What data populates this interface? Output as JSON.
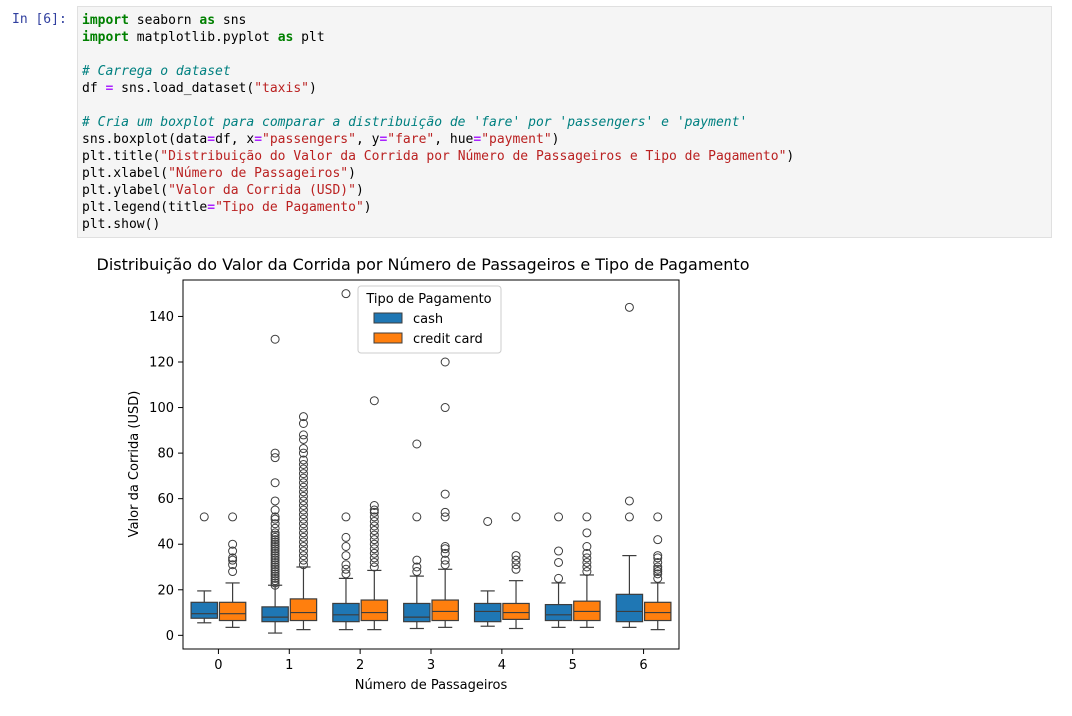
{
  "cell": {
    "prompt": "In [6]:",
    "code_lines": [
      [
        {
          "t": "import",
          "c": "kw"
        },
        {
          "t": " seaborn "
        },
        {
          "t": "as",
          "c": "kw"
        },
        {
          "t": " sns"
        }
      ],
      [
        {
          "t": "import",
          "c": "kw"
        },
        {
          "t": " matplotlib.pyplot "
        },
        {
          "t": "as",
          "c": "kw"
        },
        {
          "t": " plt"
        }
      ],
      [],
      [
        {
          "t": "# Carrega o dataset",
          "c": "cm"
        }
      ],
      [
        {
          "t": "df "
        },
        {
          "t": "=",
          "c": "op"
        },
        {
          "t": " sns.load_dataset("
        },
        {
          "t": "\"taxis\"",
          "c": "st"
        },
        {
          "t": ")"
        }
      ],
      [],
      [
        {
          "t": "# Cria um boxplot para comparar a distribuição de 'fare' por 'passengers' e 'payment'",
          "c": "cm"
        }
      ],
      [
        {
          "t": "sns.boxplot(data"
        },
        {
          "t": "=",
          "c": "op"
        },
        {
          "t": "df, x"
        },
        {
          "t": "=",
          "c": "op"
        },
        {
          "t": "\"passengers\"",
          "c": "st"
        },
        {
          "t": ", y"
        },
        {
          "t": "=",
          "c": "op"
        },
        {
          "t": "\"fare\"",
          "c": "st"
        },
        {
          "t": ", hue"
        },
        {
          "t": "=",
          "c": "op"
        },
        {
          "t": "\"payment\"",
          "c": "st"
        },
        {
          "t": ")"
        }
      ],
      [
        {
          "t": "plt.title("
        },
        {
          "t": "\"Distribuição do Valor da Corrida por Número de Passageiros e Tipo de Pagamento\"",
          "c": "st"
        },
        {
          "t": ")"
        }
      ],
      [
        {
          "t": "plt.xlabel("
        },
        {
          "t": "\"Número de Passageiros\"",
          "c": "st"
        },
        {
          "t": ")"
        }
      ],
      [
        {
          "t": "plt.ylabel("
        },
        {
          "t": "\"Valor da Corrida (USD)\"",
          "c": "st"
        },
        {
          "t": ")"
        }
      ],
      [
        {
          "t": "plt.legend(title"
        },
        {
          "t": "=",
          "c": "op"
        },
        {
          "t": "\"Tipo de Pagamento\"",
          "c": "st"
        },
        {
          "t": ")"
        }
      ],
      [
        {
          "t": "plt.show()"
        }
      ]
    ]
  },
  "chart_data": {
    "type": "box",
    "title": "Distribuição do Valor da Corrida por Número de Passageiros e Tipo de Pagamento",
    "xlabel": "Número de Passageiros",
    "ylabel": "Valor da Corrida (USD)",
    "categories": [
      "0",
      "1",
      "2",
      "3",
      "4",
      "5",
      "6"
    ],
    "ylim": [
      -6,
      156
    ],
    "yticks": [
      0,
      20,
      40,
      60,
      80,
      100,
      120,
      140
    ],
    "grid": false,
    "legend": {
      "title": "Tipo de Pagamento",
      "placement": "upper-center"
    },
    "series": [
      {
        "name": "cash",
        "color": "#1f77b4",
        "boxes": [
          {
            "whislo": 5.5,
            "q1": 7.5,
            "med": 9.5,
            "q3": 14.5,
            "whishi": 19.5,
            "fliers": [
              52
            ]
          },
          {
            "whislo": 1,
            "q1": 6,
            "med": 8,
            "q3": 12.5,
            "whishi": 22,
            "fliers": [
              22,
              23,
              24,
              25,
              26,
              27,
              28,
              29,
              30,
              31,
              32,
              33,
              34,
              35,
              36,
              37,
              38,
              39,
              40,
              41,
              42,
              43,
              44,
              45,
              47,
              49,
              51,
              52,
              55,
              59,
              67,
              78,
              80,
              130
            ]
          },
          {
            "whislo": 2.5,
            "q1": 6,
            "med": 9,
            "q3": 14,
            "whishi": 25,
            "fliers": [
              27,
              29,
              31,
              35,
              39,
              43,
              52,
              150
            ]
          },
          {
            "whislo": 3,
            "q1": 6,
            "med": 8,
            "q3": 14,
            "whishi": 26,
            "fliers": [
              28,
              30,
              33,
              52,
              84
            ]
          },
          {
            "whislo": 4,
            "q1": 6,
            "med": 10.5,
            "q3": 14,
            "whishi": 19.5,
            "fliers": [
              50
            ]
          },
          {
            "whislo": 3.5,
            "q1": 6.5,
            "med": 9,
            "q3": 13.5,
            "whishi": 23,
            "fliers": [
              25,
              32,
              37,
              52
            ]
          },
          {
            "whislo": 3.5,
            "q1": 6,
            "med": 10.5,
            "q3": 18,
            "whishi": 35,
            "fliers": [
              52,
              59,
              144
            ]
          }
        ]
      },
      {
        "name": "credit card",
        "color": "#ff7f0e",
        "boxes": [
          {
            "whislo": 3.5,
            "q1": 6.5,
            "med": 9.5,
            "q3": 14.5,
            "whishi": 23,
            "fliers": [
              28,
              31,
              33,
              34,
              37,
              40,
              52
            ]
          },
          {
            "whislo": 2.5,
            "q1": 6.5,
            "med": 10,
            "q3": 16,
            "whishi": 30,
            "fliers": [
              31,
              33,
              35,
              37,
              39,
              41,
              43,
              45,
              47,
              49,
              51,
              53,
              55,
              57,
              59,
              61,
              63,
              65,
              67,
              69,
              71,
              73,
              75,
              77,
              80,
              82,
              86,
              88,
              93,
              96
            ]
          },
          {
            "whislo": 2.5,
            "q1": 6.5,
            "med": 10,
            "q3": 15.5,
            "whishi": 28.5,
            "fliers": [
              30,
              32,
              34,
              36,
              38,
              40,
              42,
              44,
              46,
              48,
              50,
              52,
              54,
              55,
              57,
              103
            ]
          },
          {
            "whislo": 3.5,
            "q1": 6.5,
            "med": 10.5,
            "q3": 15.5,
            "whishi": 29,
            "fliers": [
              31,
              33,
              36,
              38,
              39,
              52,
              54,
              62,
              100,
              120
            ]
          },
          {
            "whislo": 3,
            "q1": 7,
            "med": 10,
            "q3": 14,
            "whishi": 24,
            "fliers": [
              29,
              31,
              33,
              35,
              52
            ]
          },
          {
            "whislo": 3.5,
            "q1": 6.5,
            "med": 10.5,
            "q3": 15,
            "whishi": 26.5,
            "fliers": [
              28,
              30,
              32,
              34,
              36,
              39,
              45,
              52
            ]
          },
          {
            "whislo": 2.5,
            "q1": 6.5,
            "med": 10,
            "q3": 14.5,
            "whishi": 23,
            "fliers": [
              25,
              27,
              28,
              29,
              30,
              32,
              34,
              35,
              42,
              52
            ]
          }
        ]
      }
    ]
  }
}
